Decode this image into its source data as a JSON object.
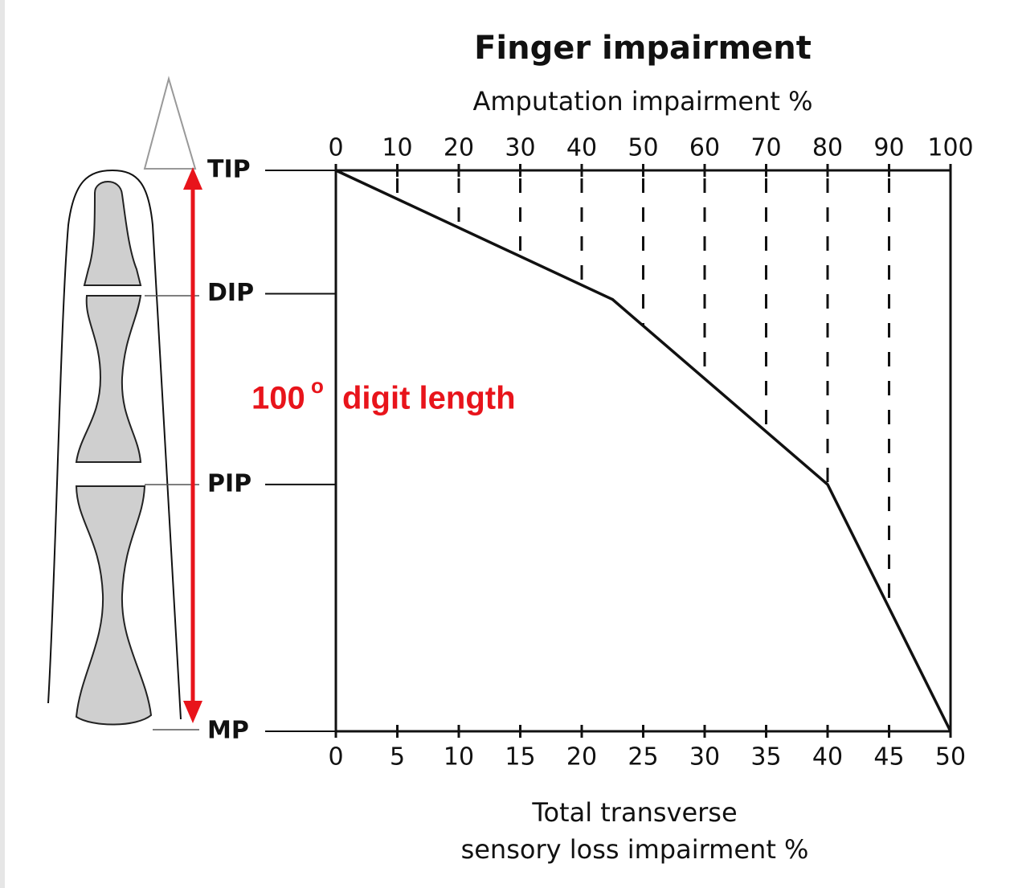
{
  "chart_data": {
    "type": "line",
    "title": "Finger impairment",
    "xlabel": "Amputation impairment %",
    "x2label": [
      "Total transverse",
      "sensory loss impairment %"
    ],
    "xlim": [
      0,
      100
    ],
    "xticks": [
      0,
      10,
      20,
      30,
      40,
      50,
      60,
      70,
      80,
      90,
      100
    ],
    "x2lim": [
      0,
      50
    ],
    "x2ticks": [
      0,
      5,
      10,
      15,
      20,
      25,
      30,
      35,
      40,
      45,
      50
    ],
    "ylim": [
      0,
      100
    ],
    "y_inverted": true,
    "yticks": [
      {
        "value": 0,
        "label": "TIP"
      },
      {
        "value": 22,
        "label": "DIP"
      },
      {
        "value": 56,
        "label": "PIP"
      },
      {
        "value": 100,
        "label": "MP"
      }
    ],
    "grid": "dashed",
    "series": [
      {
        "x": [
          0,
          45,
          80,
          100
        ],
        "values": [
          0,
          23,
          56,
          100
        ],
        "color": "#111111"
      }
    ],
    "annotation": {
      "text": "100",
      "superscript": "o",
      "rest": "digit length",
      "color": "#e8141b"
    }
  }
}
